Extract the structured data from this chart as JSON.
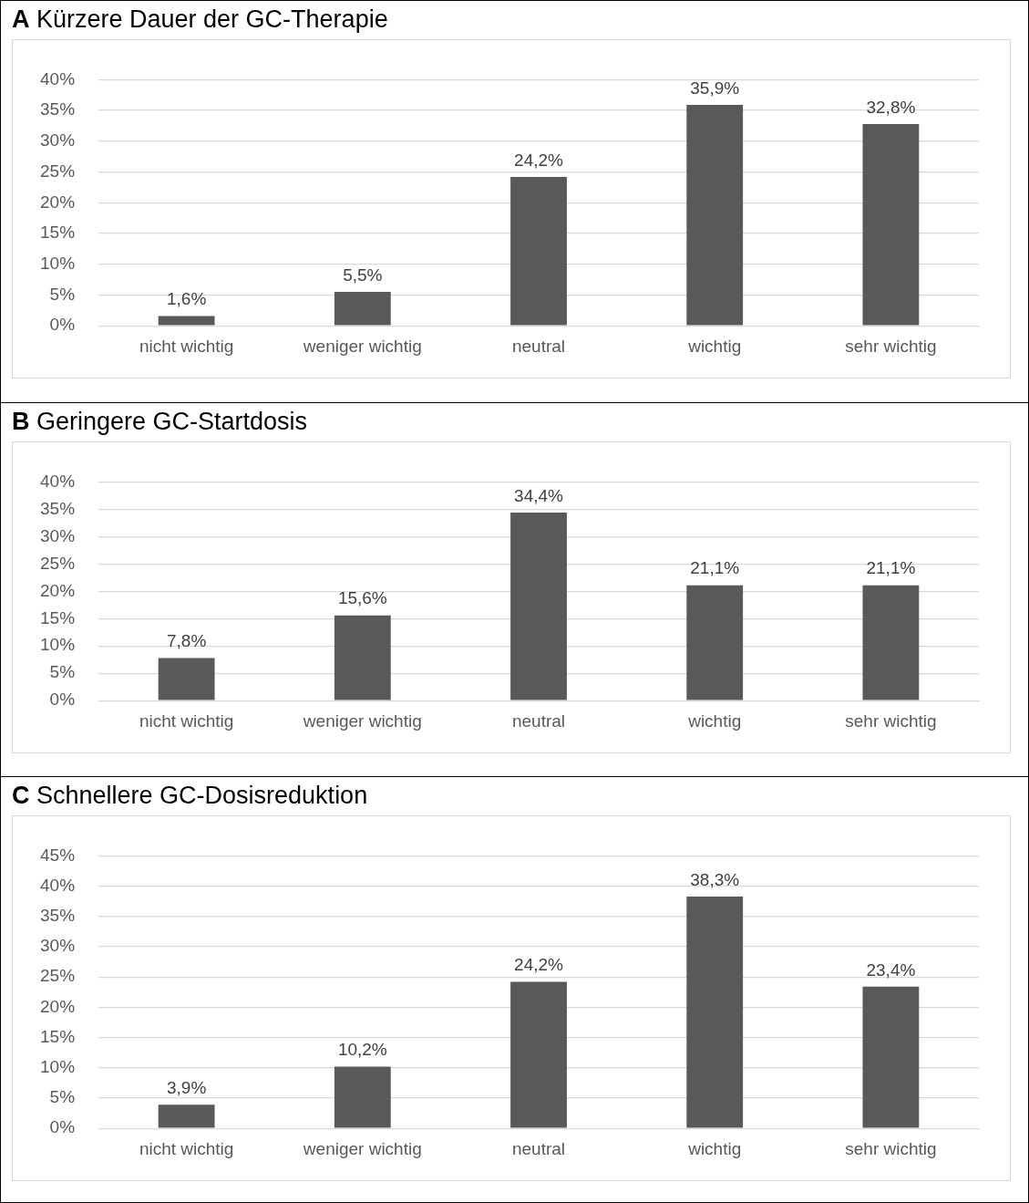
{
  "chart_data": [
    {
      "type": "bar",
      "title": "A Kürzere Dauer der GC-Therapie",
      "categories": [
        "nicht wichtig",
        "weniger wichtig",
        "neutral",
        "wichtig",
        "sehr wichtig"
      ],
      "values": [
        1.6,
        5.5,
        24.2,
        35.9,
        32.8
      ],
      "value_labels": [
        "1,6%",
        "5,5%",
        "24,2%",
        "35,9%",
        "32,8%"
      ],
      "color": "#595959",
      "ylim": [
        0,
        40
      ],
      "yticks": [
        {
          "value": 0,
          "label": "0%"
        },
        {
          "value": 5,
          "label": "5%"
        },
        {
          "value": 10,
          "label": "10%"
        },
        {
          "value": 15,
          "label": "15%"
        },
        {
          "value": 20,
          "label": "20%"
        },
        {
          "value": 25,
          "label": "25%"
        },
        {
          "value": 30,
          "label": "30%"
        },
        {
          "value": 35,
          "label": "35%"
        },
        {
          "value": 40,
          "label": "40%"
        }
      ],
      "grid": "y"
    },
    {
      "type": "bar",
      "title": "B Geringere GC-Startdosis",
      "categories": [
        "nicht wichtig",
        "weniger wichtig",
        "neutral",
        "wichtig",
        "sehr wichtig"
      ],
      "values": [
        7.8,
        15.6,
        34.4,
        21.1,
        21.1
      ],
      "value_labels": [
        "7,8%",
        "15,6%",
        "34,4%",
        "21,1%",
        "21,1%"
      ],
      "color": "#595959",
      "ylim": [
        0,
        40
      ],
      "yticks": [
        {
          "value": 0,
          "label": "0%"
        },
        {
          "value": 5,
          "label": "5%"
        },
        {
          "value": 10,
          "label": "10%"
        },
        {
          "value": 15,
          "label": "15%"
        },
        {
          "value": 20,
          "label": "20%"
        },
        {
          "value": 25,
          "label": "25%"
        },
        {
          "value": 30,
          "label": "30%"
        },
        {
          "value": 35,
          "label": "35%"
        },
        {
          "value": 40,
          "label": "40%"
        }
      ],
      "grid": "y"
    },
    {
      "type": "bar",
      "title": "C Schnellere GC-Dosisreduktion",
      "categories": [
        "nicht wichtig",
        "weniger wichtig",
        "neutral",
        "wichtig",
        "sehr wichtig"
      ],
      "values": [
        3.9,
        10.2,
        24.2,
        38.3,
        23.4
      ],
      "value_labels": [
        "3,9%",
        "10,2%",
        "24,2%",
        "38,3%",
        "23,4%"
      ],
      "color": "#595959",
      "ylim": [
        0,
        45
      ],
      "yticks": [
        {
          "value": 0,
          "label": "0%"
        },
        {
          "value": 5,
          "label": "5%"
        },
        {
          "value": 10,
          "label": "10%"
        },
        {
          "value": 15,
          "label": "15%"
        },
        {
          "value": 20,
          "label": "20%"
        },
        {
          "value": 25,
          "label": "25%"
        },
        {
          "value": 30,
          "label": "30%"
        },
        {
          "value": 35,
          "label": "35%"
        },
        {
          "value": 40,
          "label": "40%"
        },
        {
          "value": 45,
          "label": "45%"
        }
      ],
      "grid": "y"
    }
  ]
}
